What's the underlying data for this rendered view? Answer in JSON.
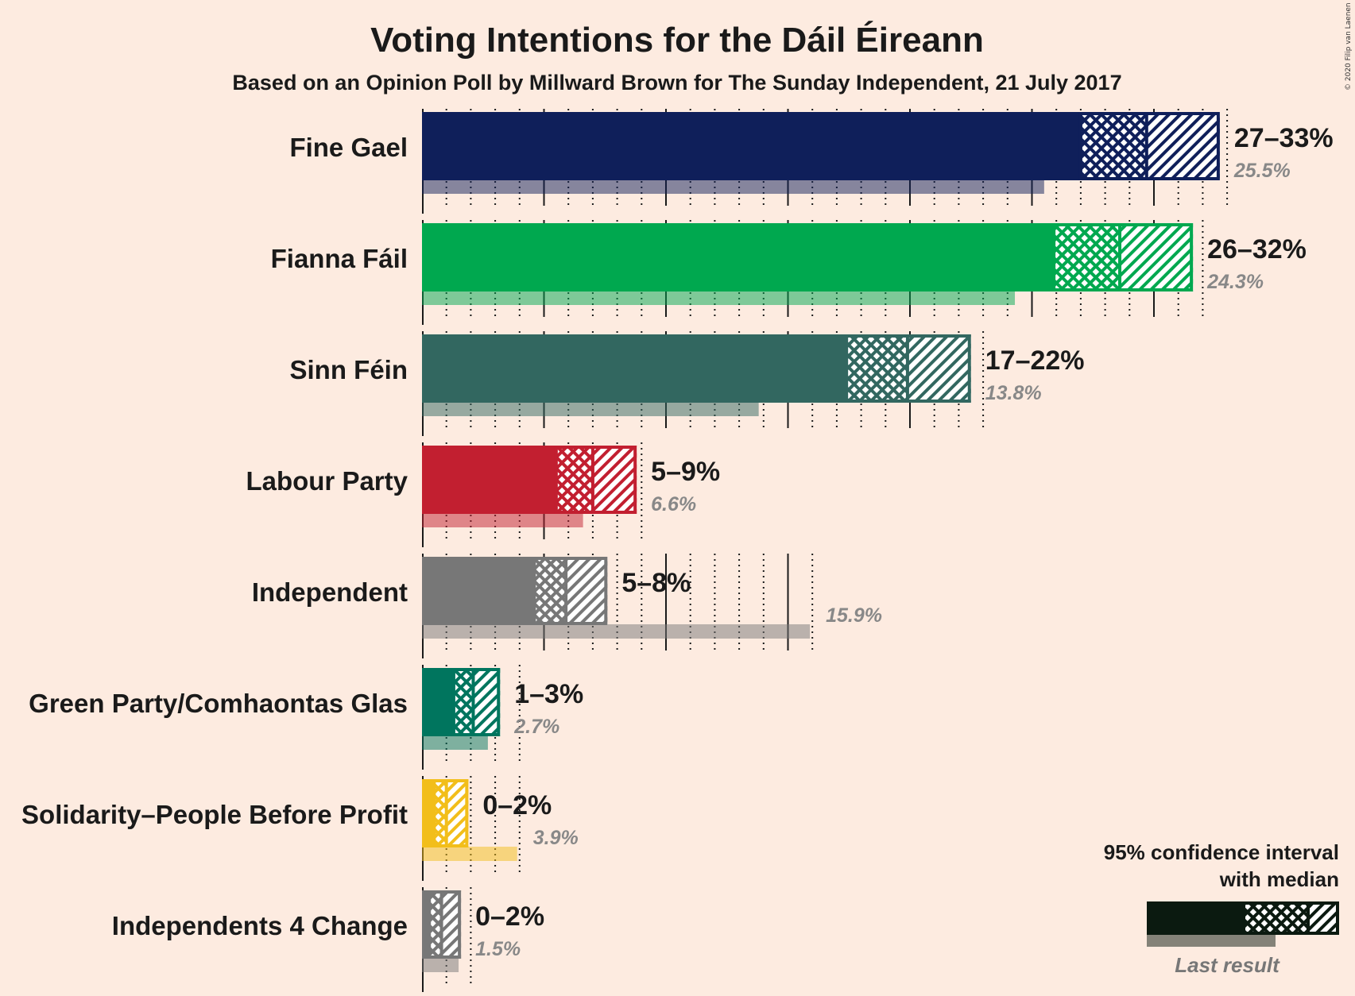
{
  "chart_data": {
    "type": "bar",
    "title": "Voting Intentions for the Dáil Éireann",
    "subtitle": "Based on an Opinion Poll by Millward Brown for The Sunday Independent, 21 July 2017",
    "copyright": "© 2020 Filip van Laenen",
    "x_range": [
      0,
      33.5
    ],
    "categories": [
      "Fine Gael",
      "Fianna Fáil",
      "Sinn Féin",
      "Labour Party",
      "Independent",
      "Green Party/Comhaontas Glas",
      "Solidarity–People Before Profit",
      "Independents 4 Change"
    ],
    "parties": [
      {
        "name": "Fine Gael",
        "color": "#0F1F5A",
        "ci_low": 27.0,
        "median": 29.7,
        "ci_high": 32.7,
        "range_label": "27–33%",
        "last_result": 25.5,
        "last_label": "25.5%"
      },
      {
        "name": "Fianna Fáil",
        "color": "#00A84F",
        "ci_low": 25.9,
        "median": 28.6,
        "ci_high": 31.6,
        "range_label": "26–32%",
        "last_result": 24.3,
        "last_label": "24.3%"
      },
      {
        "name": "Sinn Féin",
        "color": "#326760",
        "ci_low": 17.4,
        "median": 19.9,
        "ci_high": 22.5,
        "range_label": "17–22%",
        "last_result": 13.8,
        "last_label": "13.8%"
      },
      {
        "name": "Labour Party",
        "color": "#C21F30",
        "ci_low": 5.5,
        "median": 7.0,
        "ci_high": 8.8,
        "range_label": "5–9%",
        "last_result": 6.6,
        "last_label": "6.6%"
      },
      {
        "name": "Independent",
        "color": "#777777",
        "ci_low": 4.6,
        "median": 5.9,
        "ci_high": 7.6,
        "range_label": "5–8%",
        "last_result": 15.9,
        "last_label": "15.9%"
      },
      {
        "name": "Green Party/Comhaontas Glas",
        "color": "#00755E",
        "ci_low": 1.3,
        "median": 2.1,
        "ci_high": 3.2,
        "range_label": "1–3%",
        "last_result": 2.7,
        "last_label": "2.7%"
      },
      {
        "name": "Solidarity–People Before Profit",
        "color": "#F2BE1A",
        "ci_low": 0.5,
        "median": 1.0,
        "ci_high": 1.9,
        "range_label": "0–2%",
        "last_result": 3.9,
        "last_label": "3.9%"
      },
      {
        "name": "Independents 4 Change",
        "color": "#777777",
        "ci_low": 0.3,
        "median": 0.8,
        "ci_high": 1.6,
        "range_label": "0–2%",
        "last_result": 1.5,
        "last_label": "1.5%"
      }
    ],
    "legend": {
      "line1": "95% confidence interval",
      "line2": "with median",
      "last_result": "Last result",
      "position": "bottom-right"
    }
  }
}
